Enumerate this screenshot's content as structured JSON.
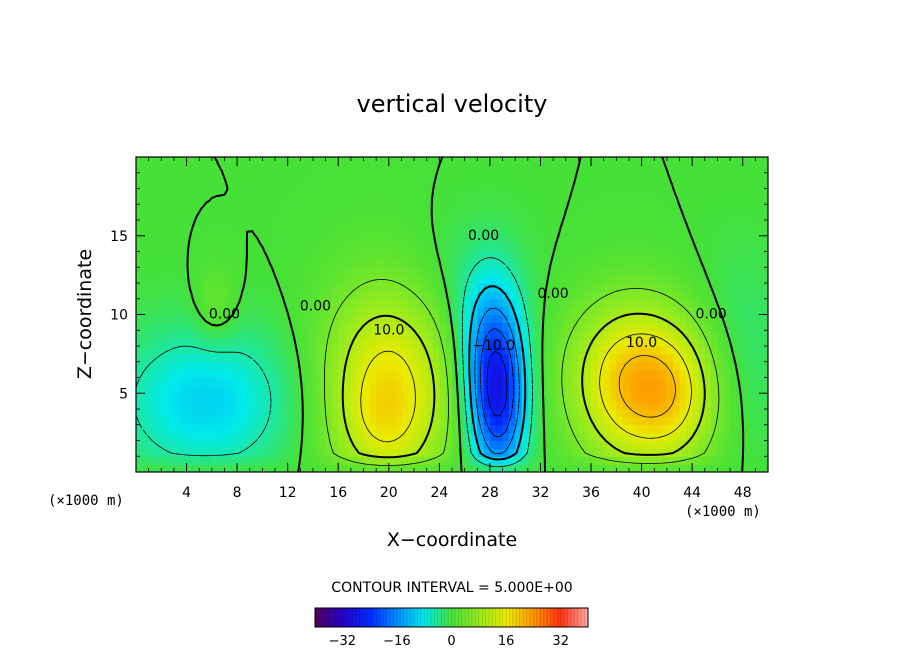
{
  "chart_data": {
    "type": "heatmap",
    "title": "vertical velocity",
    "xlabel": "X−coordinate",
    "ylabel": "Z−coordinate",
    "x_unit_label": "(×1000 m)",
    "y_unit_label": "(×1000 m)",
    "xlim": [
      0,
      50
    ],
    "ylim": [
      0,
      20
    ],
    "x_ticks": [
      "4",
      "8",
      "12",
      "16",
      "20",
      "24",
      "28",
      "32",
      "36",
      "40",
      "44",
      "48"
    ],
    "y_ticks": [
      "5",
      "10",
      "15"
    ],
    "contour_interval_text": "CONTOUR INTERVAL = 5.000E+00",
    "contour_labels": [
      {
        "text": "10.0",
        "x": 20.0,
        "z": 9.0
      },
      {
        "text": "10.0",
        "x": 40.0,
        "z": 8.2
      },
      {
        "text": "0.00",
        "x": 7.0,
        "z": 10.0
      },
      {
        "text": "0.00",
        "x": 14.2,
        "z": 10.5
      },
      {
        "text": "0.00",
        "x": 27.5,
        "z": 15.0
      },
      {
        "text": "0.00",
        "x": 33.0,
        "z": 11.3
      },
      {
        "text": "0.00",
        "x": 45.5,
        "z": 10.0
      },
      {
        "text": "−10.0",
        "x": 28.3,
        "z": 8.0
      }
    ],
    "features": [
      {
        "kind": "max",
        "x": 20,
        "z": 5.5,
        "value": 15
      },
      {
        "kind": "max",
        "x": 39,
        "z": 5.3,
        "value": 20
      },
      {
        "kind": "max",
        "x": 43,
        "z": 4.5,
        "value": 15
      },
      {
        "kind": "min",
        "x": 28.6,
        "z": 4.8,
        "value": -25
      },
      {
        "kind": "min",
        "x": 5.5,
        "z": 4.5,
        "value": -10
      }
    ],
    "colorbar": {
      "min": -40,
      "max": 40,
      "ticks": [
        "−32",
        "−16",
        "0",
        "16",
        "32"
      ]
    },
    "grid": false
  }
}
